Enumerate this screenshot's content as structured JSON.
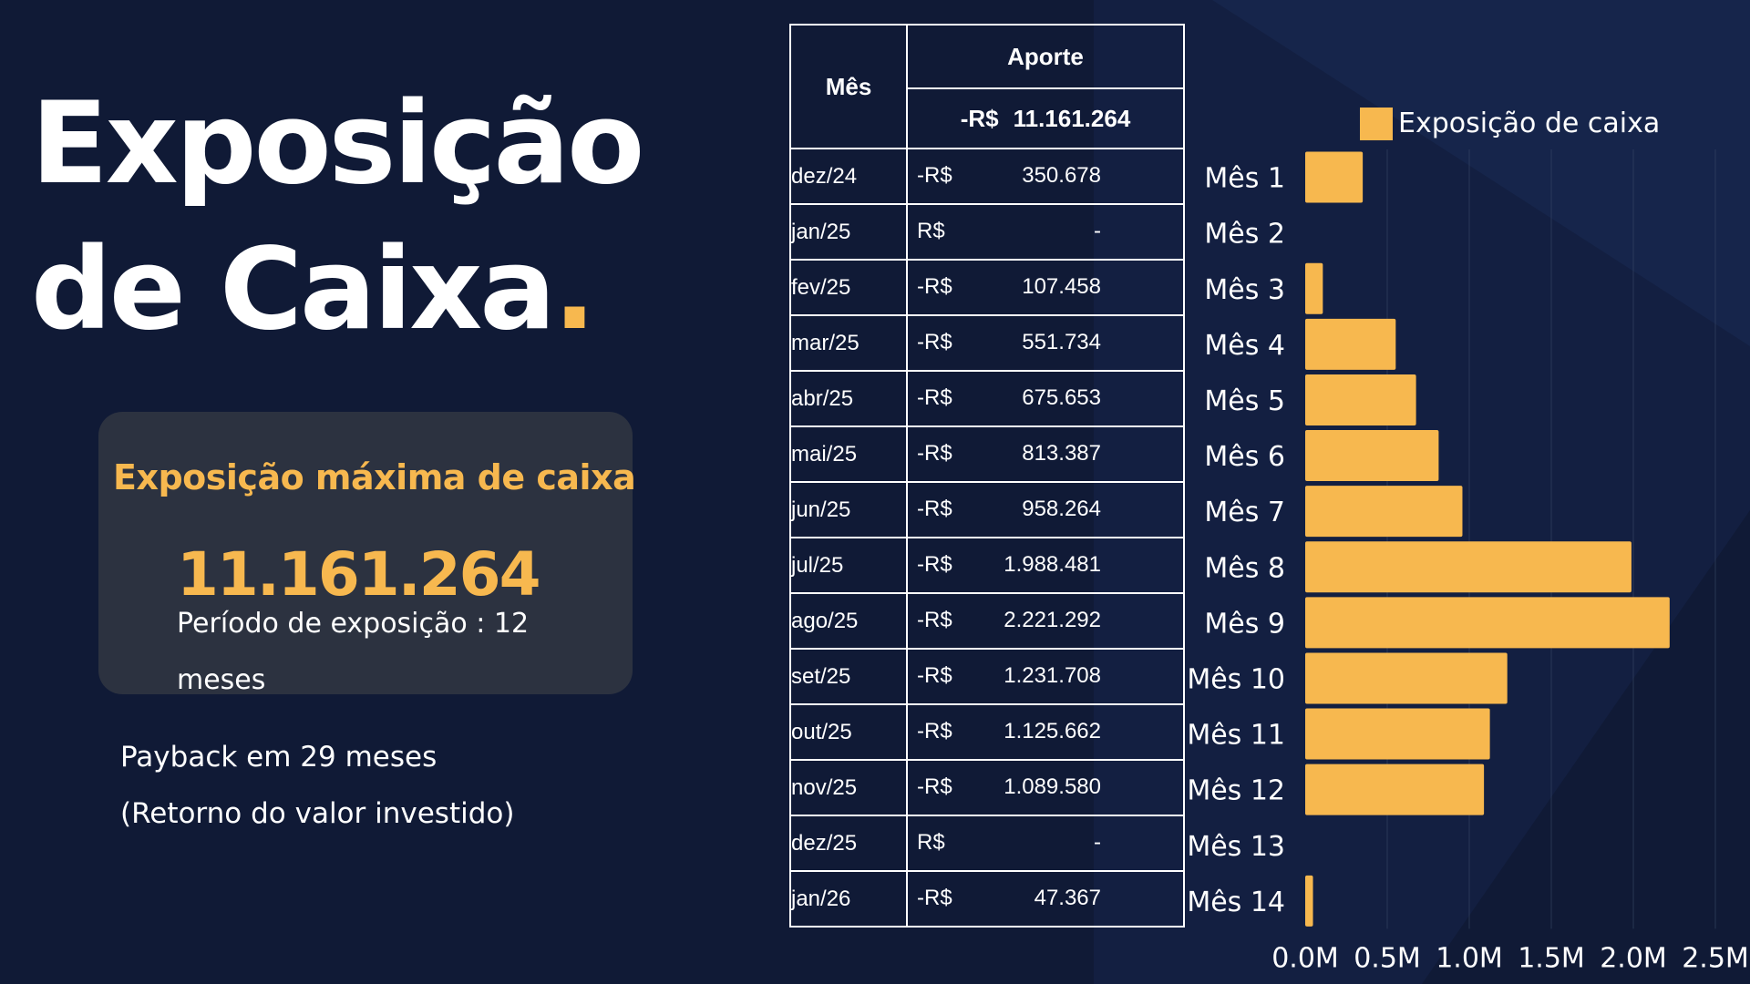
{
  "title": {
    "line1": "Exposição",
    "line2": "de Caixa",
    "dot": "."
  },
  "card": {
    "heading": "Exposição máxima de caixa",
    "value": "11.161.264",
    "period": "Período de exposição : 12 meses"
  },
  "payback": {
    "line1": "Payback em 29 meses",
    "line2": "(Retorno do valor investido)"
  },
  "table": {
    "header_month": "Mês",
    "header_contribution": "Aporte",
    "total_currency": "-R$",
    "total_value": "11.161.264",
    "rows": [
      {
        "month": "dez/24",
        "currency": "-R$",
        "amount": "350.678"
      },
      {
        "month": "jan/25",
        "currency": "R$",
        "amount": "-"
      },
      {
        "month": "fev/25",
        "currency": "-R$",
        "amount": "107.458"
      },
      {
        "month": "mar/25",
        "currency": "-R$",
        "amount": "551.734"
      },
      {
        "month": "abr/25",
        "currency": "-R$",
        "amount": "675.653"
      },
      {
        "month": "mai/25",
        "currency": "-R$",
        "amount": "813.387"
      },
      {
        "month": "jun/25",
        "currency": "-R$",
        "amount": "958.264"
      },
      {
        "month": "jul/25",
        "currency": "-R$",
        "amount": "1.988.481"
      },
      {
        "month": "ago/25",
        "currency": "-R$",
        "amount": "2.221.292"
      },
      {
        "month": "set/25",
        "currency": "-R$",
        "amount": "1.231.708"
      },
      {
        "month": "out/25",
        "currency": "-R$",
        "amount": "1.125.662"
      },
      {
        "month": "nov/25",
        "currency": "-R$",
        "amount": "1.089.580"
      },
      {
        "month": "dez/25",
        "currency": "R$",
        "amount": "-"
      },
      {
        "month": "jan/26",
        "currency": "-R$",
        "amount": "47.367"
      }
    ]
  },
  "colors": {
    "background": "#101a36",
    "accent": "#f7b84f",
    "card": "#2c3240",
    "text": "#ffffff"
  },
  "chart_data": {
    "type": "bar",
    "orientation": "horizontal",
    "categories": [
      "Mês 1",
      "Mês 2",
      "Mês 3",
      "Mês 4",
      "Mês 5",
      "Mês 6",
      "Mês 7",
      "Mês 8",
      "Mês 9",
      "Mês 10",
      "Mês 11",
      "Mês 12",
      "Mês 13",
      "Mês 14"
    ],
    "series": [
      {
        "name": "Exposição de caixa",
        "values": [
          350678,
          0,
          107458,
          551734,
          675653,
          813387,
          958264,
          1988481,
          2221292,
          1231708,
          1125662,
          1089580,
          0,
          47367
        ]
      }
    ],
    "xlim": [
      0,
      2500000
    ],
    "xticks": [
      "0.0M",
      "0.5M",
      "1.0M",
      "1.5M",
      "2.0M",
      "2.5M"
    ],
    "title": "",
    "xlabel": "",
    "ylabel": "",
    "grid": "vertical",
    "legend": "top-center"
  }
}
